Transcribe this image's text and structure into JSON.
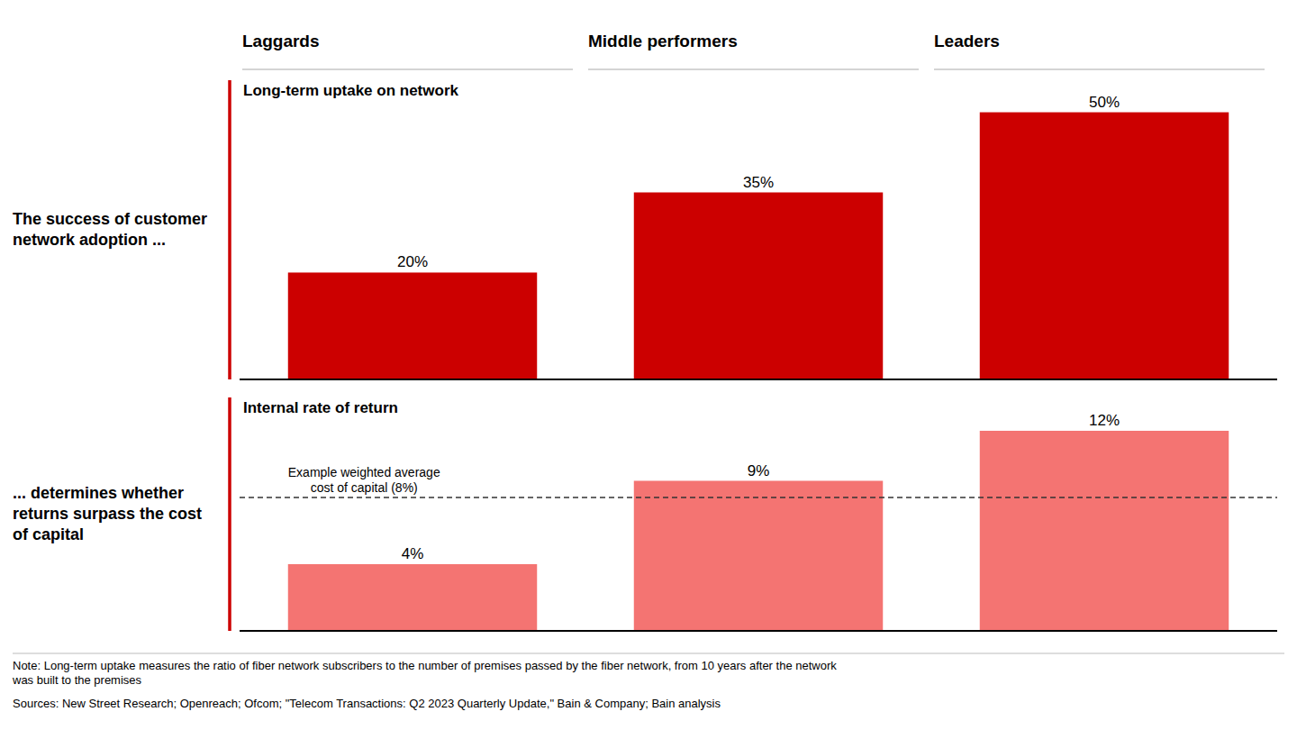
{
  "chart_data": [
    {
      "type": "bar",
      "title": "Long-term uptake on network",
      "categories": [
        "Laggards",
        "Middle performers",
        "Leaders"
      ],
      "values": [
        20,
        35,
        50
      ],
      "value_labels": [
        "20%",
        "35%",
        "50%"
      ],
      "color": "#cc0000",
      "ylim": [
        0,
        56
      ],
      "data_labels": true,
      "tick_labels": false,
      "grid": false,
      "annotations": [
        "The success of customer\nnetwork adoption ..."
      ]
    },
    {
      "type": "bar",
      "title": "Internal rate of return",
      "values": [
        4,
        9,
        12
      ],
      "value_labels": [
        "4%",
        "9%",
        "12%"
      ],
      "color": "#f47472",
      "ylim": [
        0,
        14
      ],
      "data_labels": true,
      "tick_labels": false,
      "grid": false,
      "reference_line": {
        "value": 8,
        "label": "Example weighted average\ncost of capital (8%)",
        "color": "#333333",
        "line_style": "dashed"
      },
      "annotations": [
        "... determines whether\nreturns surpass the cost\nof capital"
      ]
    }
  ],
  "note": "Note: Long-term uptake measures the ratio of fiber network subscribers to the number of premises passed by the fiber network, from 10 years after the network\nwas built to the premises",
  "source": "Sources: New Street Research; Openreach; Ofcom; \"Telecom Transactions: Q2 2023 Quarterly Update,\" Bain & Company; Bain analysis"
}
